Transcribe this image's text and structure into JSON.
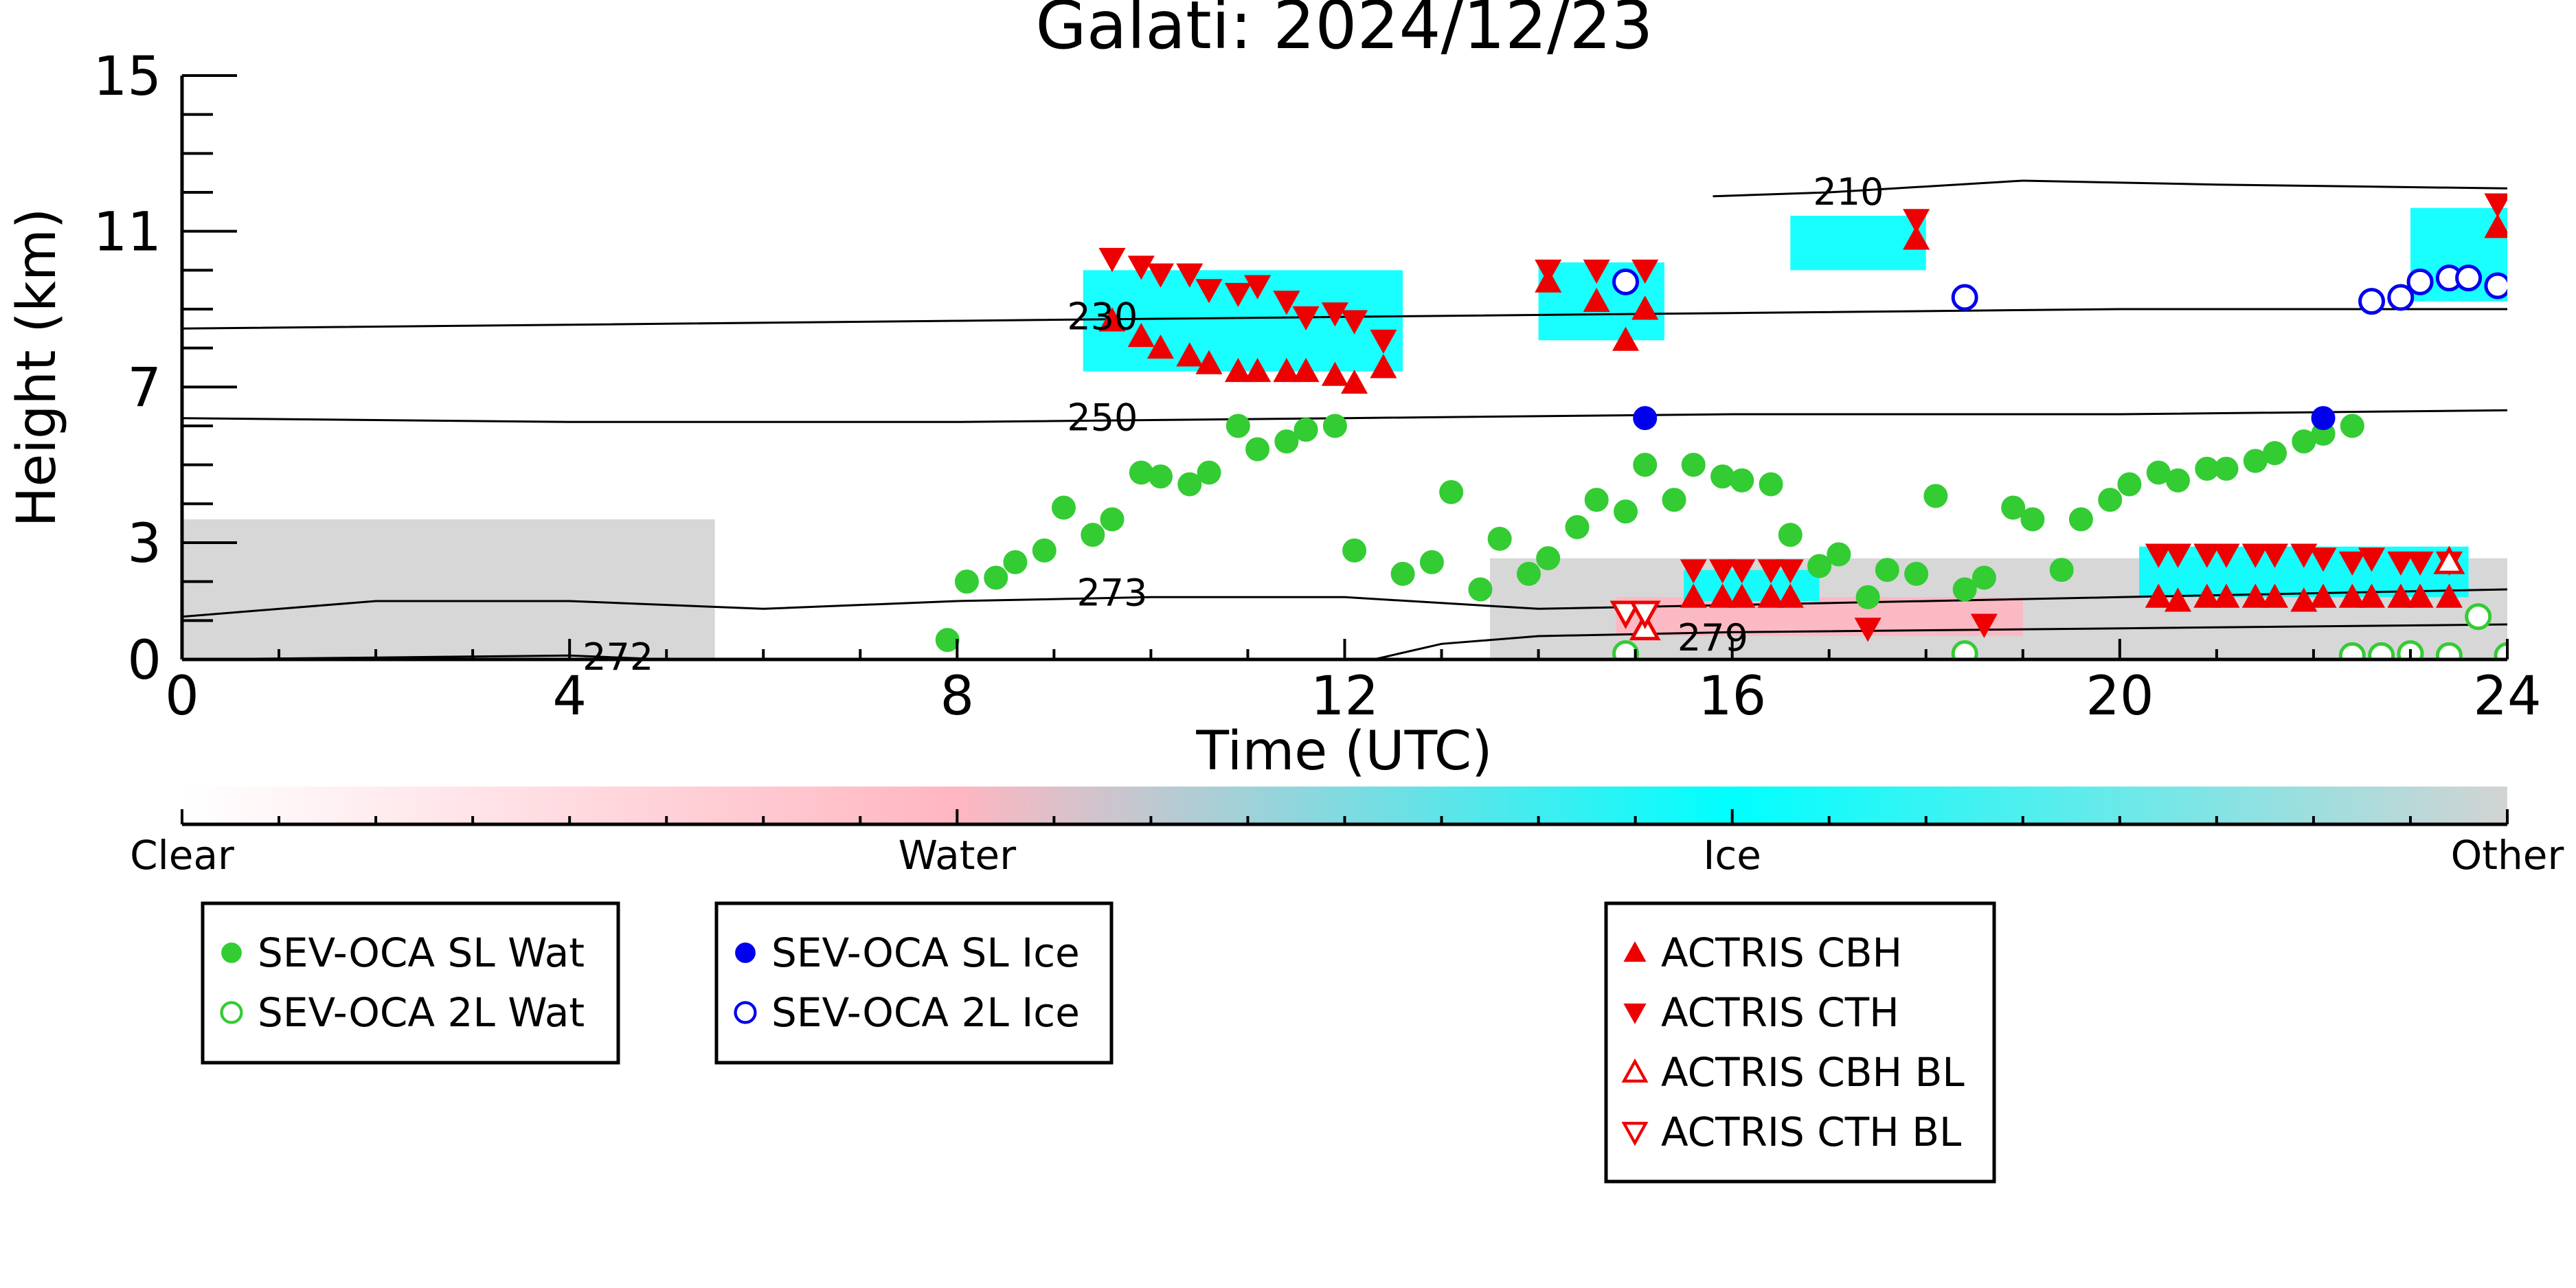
{
  "chart_data": {
    "type": "scatter",
    "title": "Galati: 2024/12/23",
    "xlabel": "Time (UTC)",
    "ylabel": "Height (km)",
    "xlim": [
      0,
      24
    ],
    "ylim": [
      0,
      15
    ],
    "x_ticks": [
      0,
      4,
      8,
      12,
      16,
      20,
      24
    ],
    "x_tick_labels": [
      "0",
      "4",
      "8",
      "12",
      "16",
      "20",
      "24"
    ],
    "y_ticks": [
      0,
      3,
      7,
      11,
      15
    ],
    "y_tick_labels": [
      "0",
      "3",
      "7",
      "11",
      "15"
    ],
    "colorbar": {
      "labels": [
        "Clear",
        "Water",
        "Ice",
        "Other"
      ],
      "colors": [
        "#ffffff",
        "#ffb6c1",
        "#00ffff",
        "#d3d3d3"
      ]
    },
    "background_classification": [
      {
        "class": "Other",
        "color": "#d3d3d3",
        "x": [
          0,
          5.5
        ],
        "y": [
          0,
          3.6
        ]
      },
      {
        "class": "Other",
        "color": "#d3d3d3",
        "x": [
          13.5,
          24
        ],
        "y": [
          0,
          2.6
        ]
      },
      {
        "class": "Water",
        "color": "#ffb6c1",
        "x": [
          14.8,
          19
        ],
        "y": [
          0.6,
          1.6
        ]
      },
      {
        "class": "Ice",
        "color": "#00ffff",
        "x": [
          9.3,
          12.6
        ],
        "y": [
          7.4,
          10.0
        ]
      },
      {
        "class": "Ice",
        "color": "#00ffff",
        "x": [
          14.0,
          15.3
        ],
        "y": [
          8.2,
          10.2
        ]
      },
      {
        "class": "Ice",
        "color": "#00ffff",
        "x": [
          16.6,
          18.0
        ],
        "y": [
          10.0,
          11.4
        ]
      },
      {
        "class": "Ice",
        "color": "#00ffff",
        "x": [
          23.0,
          24.0
        ],
        "y": [
          9.2,
          11.6
        ]
      },
      {
        "class": "Ice",
        "color": "#00ffff",
        "x": [
          15.5,
          16.9
        ],
        "y": [
          1.5,
          2.3
        ]
      },
      {
        "class": "Ice",
        "color": "#00ffff",
        "x": [
          20.2,
          23.6
        ],
        "y": [
          1.6,
          2.9
        ]
      }
    ],
    "contours": [
      {
        "label": "210",
        "label_x": 17.2,
        "label_y": 12.0,
        "x": [
          15.8,
          17,
          19,
          21,
          24
        ],
        "y": [
          11.9,
          12.0,
          12.3,
          12.2,
          12.1
        ]
      },
      {
        "label": "230",
        "label_x": 9.5,
        "label_y": 8.8,
        "x": [
          0,
          4,
          8,
          12,
          16,
          20,
          24
        ],
        "y": [
          8.5,
          8.6,
          8.7,
          8.8,
          8.9,
          9.0,
          9.0
        ]
      },
      {
        "label": "250",
        "label_x": 9.5,
        "label_y": 6.2,
        "x": [
          0,
          4,
          8,
          12,
          16,
          20,
          24
        ],
        "y": [
          6.2,
          6.1,
          6.1,
          6.2,
          6.3,
          6.3,
          6.4
        ]
      },
      {
        "label": "273",
        "label_x": 9.6,
        "label_y": 1.7,
        "x": [
          0,
          2,
          4,
          6,
          8,
          10,
          12,
          14,
          16,
          20,
          24
        ],
        "y": [
          1.1,
          1.5,
          1.5,
          1.3,
          1.5,
          1.6,
          1.6,
          1.3,
          1.4,
          1.6,
          1.8
        ]
      },
      {
        "label": "272",
        "label_x": 4.5,
        "label_y": 0.05,
        "x": [
          0,
          2,
          4,
          5
        ],
        "y": [
          0.0,
          0.05,
          0.1,
          0.0
        ]
      },
      {
        "label": "279",
        "label_x": 15.8,
        "label_y": 0.55,
        "x": [
          12.3,
          13,
          14,
          15,
          16,
          20,
          24
        ],
        "y": [
          0.0,
          0.4,
          0.6,
          0.65,
          0.7,
          0.8,
          0.9
        ]
      }
    ],
    "series": [
      {
        "name": "SEV-OCA SL Wat",
        "color": "#33cc33",
        "marker": "filled-circle",
        "x": [
          7.9,
          8.1,
          8.4,
          8.6,
          8.9,
          9.1,
          9.4,
          9.6,
          9.9,
          10.1,
          10.4,
          10.6,
          10.9,
          11.1,
          11.4,
          11.6,
          11.9,
          12.1,
          12.6,
          12.9,
          13.1,
          13.4,
          13.6,
          13.9,
          14.1,
          14.4,
          14.6,
          14.9,
          15.1,
          15.4,
          15.6,
          15.9,
          16.1,
          16.4,
          16.6,
          16.9,
          17.1,
          17.4,
          17.6,
          17.9,
          18.1,
          18.4,
          18.6,
          18.9,
          19.1,
          19.4,
          19.6,
          19.9,
          20.1,
          20.4,
          20.6,
          20.9,
          21.1,
          21.4,
          21.6,
          21.9,
          22.1,
          22.4
        ],
        "y": [
          0.5,
          2.0,
          2.1,
          2.5,
          2.8,
          3.9,
          3.2,
          3.6,
          4.8,
          4.7,
          4.5,
          4.8,
          6.0,
          5.4,
          5.6,
          5.9,
          6.0,
          2.8,
          2.2,
          2.5,
          4.3,
          1.8,
          3.1,
          2.2,
          2.6,
          3.4,
          4.1,
          3.8,
          5.0,
          4.1,
          5.0,
          4.7,
          4.6,
          4.5,
          3.2,
          2.4,
          2.7,
          1.6,
          2.3,
          2.2,
          4.2,
          1.8,
          2.1,
          3.9,
          3.6,
          2.3,
          3.6,
          4.1,
          4.5,
          4.8,
          4.6,
          4.9,
          4.9,
          5.1,
          5.3,
          5.6,
          5.8,
          6.0
        ]
      },
      {
        "name": "SEV-OCA 2L Wat",
        "color": "#33cc33",
        "marker": "open-circle",
        "x": [
          14.9,
          18.4,
          22.4,
          22.7,
          23.0,
          23.4,
          23.7,
          24.0
        ],
        "y": [
          0.15,
          0.15,
          0.1,
          0.1,
          0.15,
          0.1,
          1.1,
          0.1
        ]
      },
      {
        "name": "SEV-OCA SL Ice",
        "color": "#0000ee",
        "marker": "filled-circle",
        "x": [
          15.1,
          22.1
        ],
        "y": [
          6.2,
          6.2
        ]
      },
      {
        "name": "SEV-OCA 2L Ice",
        "color": "#0000ee",
        "marker": "open-circle",
        "x": [
          14.9,
          18.4,
          22.6,
          22.9,
          23.1,
          23.4,
          23.6,
          23.9
        ],
        "y": [
          9.7,
          9.3,
          9.2,
          9.3,
          9.7,
          9.8,
          9.8,
          9.6
        ]
      },
      {
        "name": "ACTRIS CBH",
        "color": "#ee0000",
        "marker": "filled-triangle-up",
        "x": [
          9.6,
          9.9,
          10.1,
          10.4,
          10.6,
          10.9,
          11.1,
          11.4,
          11.6,
          11.9,
          12.1,
          12.4,
          14.1,
          14.6,
          14.9,
          15.1,
          15.6,
          15.9,
          16.1,
          16.4,
          16.6,
          17.9,
          20.4,
          20.6,
          20.9,
          21.1,
          21.4,
          21.6,
          21.9,
          22.1,
          22.4,
          22.6,
          22.9,
          23.1,
          23.4,
          23.9
        ],
        "y": [
          8.7,
          8.3,
          8.0,
          7.8,
          7.6,
          7.4,
          7.4,
          7.4,
          7.4,
          7.3,
          7.1,
          7.5,
          9.7,
          9.2,
          8.2,
          9.0,
          1.6,
          1.6,
          1.6,
          1.6,
          1.6,
          10.8,
          1.6,
          1.5,
          1.6,
          1.6,
          1.6,
          1.6,
          1.5,
          1.6,
          1.6,
          1.6,
          1.6,
          1.6,
          1.6,
          11.1
        ]
      },
      {
        "name": "ACTRIS CTH",
        "color": "#ee0000",
        "marker": "filled-triangle-down",
        "x": [
          9.6,
          9.9,
          10.1,
          10.4,
          10.6,
          10.9,
          11.1,
          11.4,
          11.6,
          11.9,
          12.1,
          12.4,
          14.1,
          14.6,
          15.1,
          15.6,
          15.9,
          16.1,
          16.4,
          16.6,
          17.4,
          17.9,
          18.6,
          20.4,
          20.6,
          20.9,
          21.1,
          21.4,
          21.6,
          21.9,
          22.1,
          22.4,
          22.6,
          22.9,
          23.1,
          23.4,
          23.9
        ],
        "y": [
          10.3,
          10.1,
          9.9,
          9.9,
          9.5,
          9.4,
          9.6,
          9.2,
          8.8,
          8.9,
          8.7,
          8.2,
          10.0,
          10.0,
          10.0,
          2.3,
          2.3,
          2.3,
          2.3,
          2.3,
          0.8,
          11.3,
          0.9,
          2.7,
          2.7,
          2.7,
          2.7,
          2.7,
          2.7,
          2.7,
          2.6,
          2.5,
          2.6,
          2.5,
          2.5,
          2.5,
          11.7
        ]
      },
      {
        "name": "ACTRIS CBH BL",
        "color": "#ee0000",
        "marker": "open-triangle-up",
        "x": [
          15.1,
          23.4
        ],
        "y": [
          0.8,
          2.5
        ]
      },
      {
        "name": "ACTRIS CTH BL",
        "color": "#ee0000",
        "marker": "open-triangle-down",
        "x": [
          14.9,
          15.1
        ],
        "y": [
          1.2,
          1.2
        ]
      }
    ],
    "legend_groups": [
      [
        "SEV-OCA SL Wat",
        "SEV-OCA 2L Wat"
      ],
      [
        "SEV-OCA SL Ice",
        "SEV-OCA 2L Ice"
      ],
      [
        "ACTRIS CBH",
        "ACTRIS CTH",
        "ACTRIS CBH BL",
        "ACTRIS CTH BL"
      ]
    ],
    "grid": false,
    "legend_placement": "bottom"
  }
}
